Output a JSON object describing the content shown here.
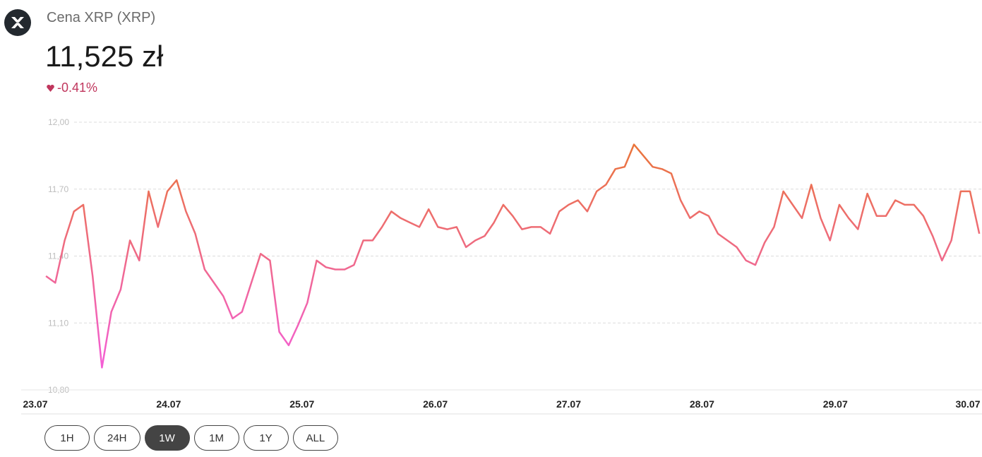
{
  "header": {
    "title": "Cena XRP (XRP)",
    "price": "11,525 zł",
    "change": "-0.41%"
  },
  "chart_data": {
    "type": "line",
    "x": [
      0.08,
      0.15,
      0.22,
      0.29,
      0.36,
      0.43,
      0.5,
      0.57,
      0.64,
      0.71,
      0.78,
      0.85,
      0.92,
      0.99,
      1.06,
      1.13,
      1.2,
      1.27,
      1.34,
      1.41,
      1.48,
      1.55,
      1.62,
      1.69,
      1.76,
      1.83,
      1.9,
      1.97,
      2.04,
      2.11,
      2.18,
      2.25,
      2.32,
      2.39,
      2.46,
      2.53,
      2.6,
      2.67,
      2.74,
      2.81,
      2.88,
      2.95,
      3.02,
      3.09,
      3.16,
      3.23,
      3.3,
      3.37,
      3.44,
      3.51,
      3.58,
      3.65,
      3.72,
      3.79,
      3.86,
      3.93,
      4,
      4.07,
      4.14,
      4.21,
      4.28,
      4.35,
      4.42,
      4.49,
      4.56,
      4.63,
      4.7,
      4.77,
      4.84,
      4.91,
      4.98,
      5.05,
      5.12,
      5.19,
      5.26,
      5.33,
      5.4,
      5.47,
      5.54,
      5.61,
      5.68,
      5.75,
      5.82,
      5.89,
      5.96,
      6.03,
      6.1,
      6.17,
      6.24,
      6.31,
      6.38,
      6.45,
      6.52,
      6.59,
      6.66,
      6.73,
      6.8,
      6.87,
      6.94,
      7.01,
      7.08
    ],
    "values": [
      11.31,
      11.28,
      11.47,
      11.6,
      11.63,
      11.31,
      10.9,
      11.15,
      11.25,
      11.47,
      11.38,
      11.69,
      11.53,
      11.69,
      11.74,
      11.6,
      11.5,
      11.34,
      11.28,
      11.22,
      11.12,
      11.15,
      11.28,
      11.41,
      11.38,
      11.06,
      11.0,
      11.09,
      11.19,
      11.38,
      11.35,
      11.34,
      11.34,
      11.36,
      11.47,
      11.47,
      11.53,
      11.6,
      11.57,
      11.55,
      11.53,
      11.61,
      11.53,
      11.52,
      11.53,
      11.44,
      11.47,
      11.49,
      11.55,
      11.63,
      11.58,
      11.52,
      11.53,
      11.53,
      11.5,
      11.6,
      11.63,
      11.65,
      11.6,
      11.69,
      11.72,
      11.79,
      11.8,
      11.9,
      11.85,
      11.8,
      11.79,
      11.77,
      11.65,
      11.57,
      11.6,
      11.58,
      11.5,
      11.47,
      11.44,
      11.38,
      11.36,
      11.46,
      11.53,
      11.69,
      11.63,
      11.57,
      11.72,
      11.57,
      11.47,
      11.63,
      11.57,
      11.52,
      11.68,
      11.58,
      11.58,
      11.65,
      11.63,
      11.63,
      11.58,
      11.49,
      11.38,
      11.47,
      11.69,
      11.69,
      11.5
    ],
    "gradient": [
      "#f55ce6",
      "#e9772a"
    ],
    "xlim": [
      0,
      7.1
    ],
    "xticks": [
      {
        "value": 0,
        "label": "23.07"
      },
      {
        "value": 1,
        "label": "24.07"
      },
      {
        "value": 2,
        "label": "25.07"
      },
      {
        "value": 3,
        "label": "26.07"
      },
      {
        "value": 4,
        "label": "27.07"
      },
      {
        "value": 5,
        "label": "28.07"
      },
      {
        "value": 6,
        "label": "29.07"
      },
      {
        "value": 7,
        "label": "30.07"
      }
    ],
    "ylim": [
      10.8,
      12.0
    ],
    "yticks": [
      {
        "value": 10.8,
        "label": "10,80"
      },
      {
        "value": 11.1,
        "label": "11,10"
      },
      {
        "value": 11.4,
        "label": "11,40"
      },
      {
        "value": 11.7,
        "label": "11,70"
      },
      {
        "value": 12.0,
        "label": "12,00"
      }
    ],
    "grid": true
  },
  "ranges": {
    "options": [
      "1H",
      "24H",
      "1W",
      "1M",
      "1Y",
      "ALL"
    ],
    "active": "1W"
  }
}
